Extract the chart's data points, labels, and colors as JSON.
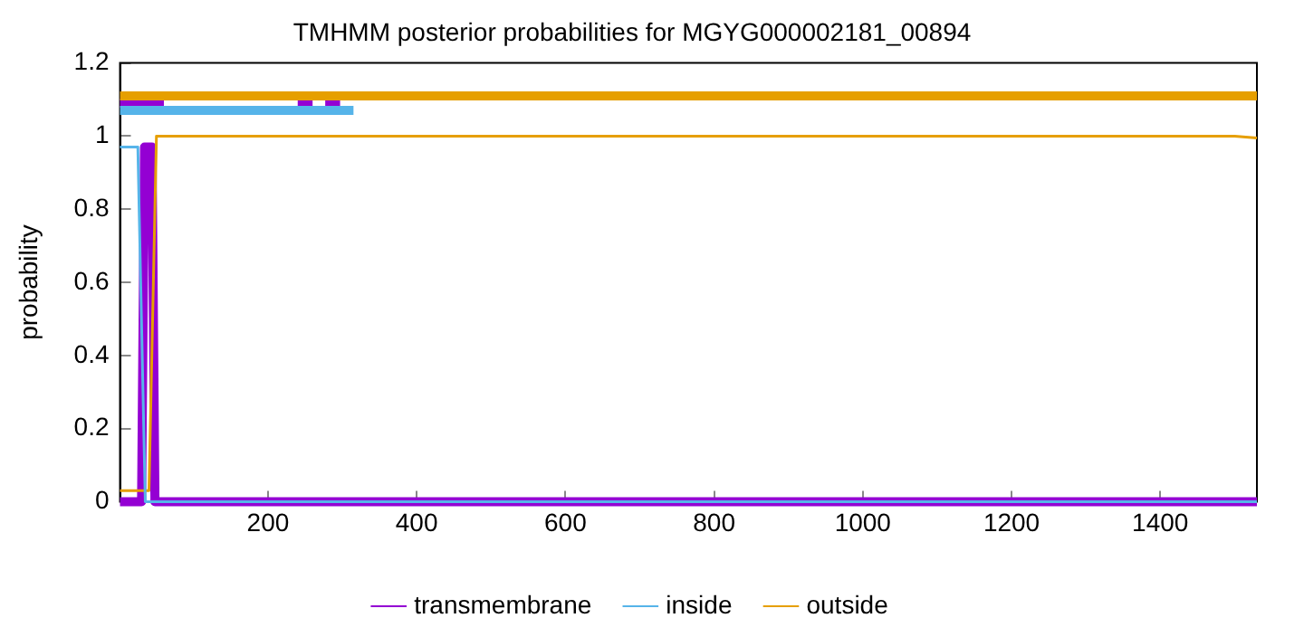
{
  "chart_data": {
    "type": "line",
    "title": "TMHMM posterior probabilities for MGYG000002181_00894",
    "ylabel": "probability",
    "xlim": [
      1,
      1530
    ],
    "xticks": [
      200,
      400,
      600,
      800,
      1000,
      1200,
      1400
    ],
    "ylim": [
      0,
      1.2
    ],
    "yticks": [
      0,
      0.2,
      0.4,
      0.6,
      0.8,
      1,
      1.2
    ],
    "grid": false,
    "legend": "bottom",
    "marker": "none",
    "line_style": "solid",
    "series": [
      {
        "name": "transmembrane",
        "color": "#9400d3",
        "x": [
          1,
          30,
          34,
          44,
          48,
          1530
        ],
        "values": [
          0,
          0,
          0.97,
          0.97,
          0,
          0
        ]
      },
      {
        "name": "inside",
        "color": "#56b4e9",
        "x": [
          1,
          25,
          35,
          1530
        ],
        "values": [
          0.97,
          0.97,
          0,
          0
        ]
      },
      {
        "name": "outside",
        "color": "#e69f00",
        "x": [
          1,
          40,
          50,
          1500,
          1530
        ],
        "values": [
          0.03,
          0.03,
          1,
          1,
          0.995
        ]
      },
      {
        "color": "#e69f00",
        "x": [
          1,
          1530
        ],
        "values": [
          1.11,
          1.11
        ]
      },
      {
        "color": "#56b4e9",
        "x": [
          1,
          315
        ],
        "values": [
          1.07,
          1.07
        ]
      },
      {
        "color": "#9400d3",
        "x": [
          1,
          60
        ],
        "values": [
          1.09,
          1.09
        ]
      },
      {
        "color": "#9400d3",
        "x": [
          240,
          260
        ],
        "values": [
          1.09,
          1.09
        ]
      },
      {
        "color": "#9400d3",
        "x": [
          277,
          297
        ],
        "values": [
          1.09,
          1.09
        ]
      }
    ]
  }
}
